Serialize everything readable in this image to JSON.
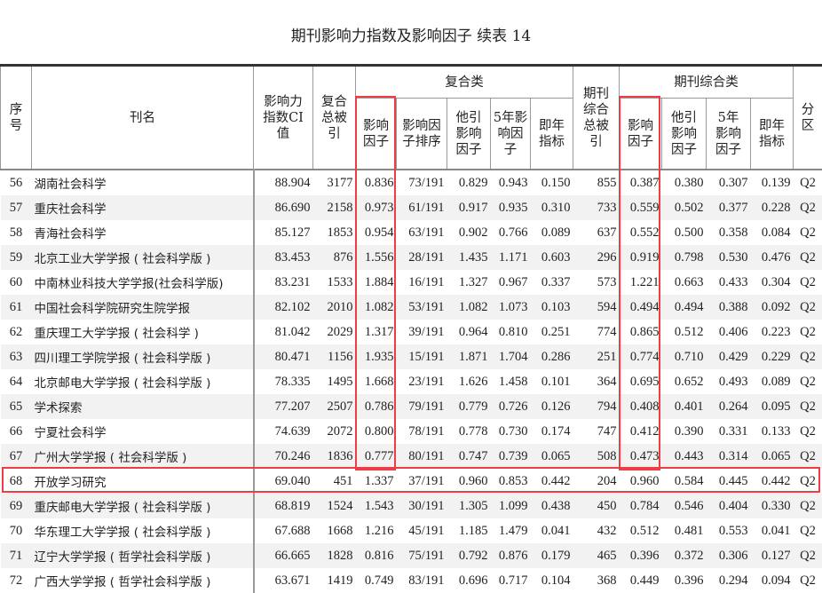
{
  "title": "期刊影响力指数及影响因子  续表 14",
  "headers": {
    "no": "序号",
    "name": "刊名",
    "ci": "影响力指数CI值",
    "fh_total": "复合总被引",
    "fh_group": "复合类",
    "fh_if": "影响因子",
    "fh_rank": "影响因子排序",
    "fh_other": "他引影响因子",
    "fh_5y": "5年影响因子",
    "fh_imm": "即年指标",
    "qk_total": "期刊综合总被引",
    "qk_group": "期刊综合类",
    "qk_if": "影响因子",
    "qk_other": "他引影响因子",
    "qk_5y": "5年影响因子",
    "qk_imm": "即年指标",
    "zone": "分区"
  },
  "highlight_color": "#f03c45",
  "highlighted_row": "68",
  "rows": [
    [
      "56",
      "湖南社会科学",
      "88.904",
      "3177",
      "0.836",
      "73/191",
      "0.829",
      "0.943",
      "0.150",
      "855",
      "0.387",
      "0.380",
      "0.307",
      "0.139",
      "Q2"
    ],
    [
      "57",
      "重庆社会科学",
      "86.690",
      "2158",
      "0.973",
      "61/191",
      "0.917",
      "0.935",
      "0.310",
      "733",
      "0.559",
      "0.502",
      "0.377",
      "0.228",
      "Q2"
    ],
    [
      "58",
      "青海社会科学",
      "85.127",
      "1853",
      "0.954",
      "63/191",
      "0.902",
      "0.766",
      "0.089",
      "637",
      "0.552",
      "0.500",
      "0.358",
      "0.084",
      "Q2"
    ],
    [
      "59",
      "北京工业大学学报 ( 社会科学版 )",
      "83.453",
      "876",
      "1.556",
      "28/191",
      "1.435",
      "1.171",
      "0.603",
      "296",
      "0.919",
      "0.798",
      "0.530",
      "0.476",
      "Q2"
    ],
    [
      "60",
      "中南林业科技大学学报(社会科学版)",
      "83.231",
      "1533",
      "1.884",
      "16/191",
      "1.327",
      "0.967",
      "0.337",
      "573",
      "1.221",
      "0.663",
      "0.433",
      "0.304",
      "Q2"
    ],
    [
      "61",
      "中国社会科学院研究生院学报",
      "82.102",
      "2010",
      "1.082",
      "53/191",
      "1.082",
      "1.073",
      "0.103",
      "594",
      "0.494",
      "0.494",
      "0.388",
      "0.092",
      "Q2"
    ],
    [
      "62",
      "重庆理工大学学报 ( 社会科学 )",
      "81.042",
      "2029",
      "1.317",
      "39/191",
      "0.964",
      "0.810",
      "0.251",
      "774",
      "0.865",
      "0.512",
      "0.406",
      "0.223",
      "Q2"
    ],
    [
      "63",
      "四川理工学院学报 ( 社会科学版 )",
      "80.471",
      "1156",
      "1.935",
      "15/191",
      "1.871",
      "1.704",
      "0.286",
      "251",
      "0.774",
      "0.710",
      "0.429",
      "0.229",
      "Q2"
    ],
    [
      "64",
      "北京邮电大学学报 ( 社会科学版 )",
      "78.335",
      "1495",
      "1.668",
      "23/191",
      "1.626",
      "1.458",
      "0.101",
      "364",
      "0.695",
      "0.652",
      "0.493",
      "0.089",
      "Q2"
    ],
    [
      "65",
      "学术探索",
      "77.207",
      "2507",
      "0.786",
      "79/191",
      "0.779",
      "0.726",
      "0.126",
      "794",
      "0.408",
      "0.401",
      "0.264",
      "0.095",
      "Q2"
    ],
    [
      "66",
      "宁夏社会科学",
      "74.639",
      "2072",
      "0.800",
      "78/191",
      "0.778",
      "0.730",
      "0.174",
      "747",
      "0.412",
      "0.390",
      "0.331",
      "0.133",
      "Q2"
    ],
    [
      "67",
      "广州大学学报 ( 社会科学版 )",
      "70.246",
      "1836",
      "0.777",
      "80/191",
      "0.747",
      "0.739",
      "0.065",
      "508",
      "0.473",
      "0.443",
      "0.314",
      "0.065",
      "Q2"
    ],
    [
      "68",
      "开放学习研究",
      "69.040",
      "451",
      "1.337",
      "37/191",
      "0.960",
      "0.853",
      "0.442",
      "204",
      "0.960",
      "0.584",
      "0.445",
      "0.442",
      "Q2"
    ],
    [
      "69",
      "重庆邮电大学学报 ( 社会科学版 )",
      "68.819",
      "1524",
      "1.543",
      "30/191",
      "1.305",
      "1.099",
      "0.438",
      "450",
      "0.784",
      "0.546",
      "0.404",
      "0.330",
      "Q2"
    ],
    [
      "70",
      "华东理工大学学报 ( 社会科学版 )",
      "67.688",
      "1668",
      "1.216",
      "45/191",
      "1.185",
      "1.479",
      "0.041",
      "432",
      "0.512",
      "0.481",
      "0.553",
      "0.041",
      "Q2"
    ],
    [
      "71",
      "辽宁大学学报 ( 哲学社会科学版 )",
      "66.665",
      "1828",
      "0.816",
      "75/191",
      "0.792",
      "0.876",
      "0.179",
      "465",
      "0.396",
      "0.372",
      "0.306",
      "0.127",
      "Q2"
    ],
    [
      "72",
      "广西大学学报 ( 哲学社会科学版 )",
      "63.671",
      "1419",
      "0.749",
      "83/191",
      "0.696",
      "0.717",
      "0.104",
      "368",
      "0.449",
      "0.396",
      "0.294",
      "0.094",
      "Q2"
    ]
  ]
}
